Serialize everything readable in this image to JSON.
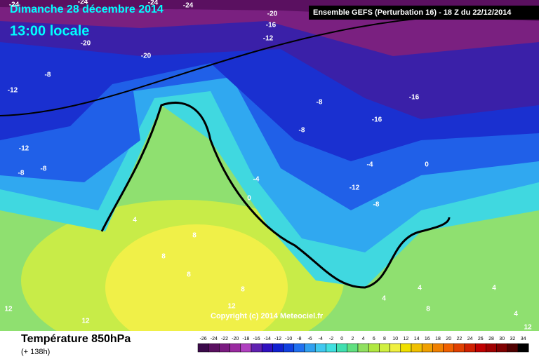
{
  "header": {
    "title": "Dimanche 28 décembre 2014",
    "time": "13:00 locale",
    "model": "Ensemble GEFS  (Perturbation 16)  -  18 Z du 22/12/2014"
  },
  "copyright": "Copyright (c) 2014 Meteociel.fr",
  "footer": {
    "variable": "Température 850hPa",
    "lead": "(+ 138h)"
  },
  "map_labels": [
    -24,
    -24,
    -24,
    -24,
    -20,
    -16,
    -12,
    -20,
    -20,
    -8,
    -12,
    -8,
    -16,
    -16,
    -8,
    -12,
    -8,
    -8,
    -4,
    -4,
    0,
    -12,
    -8,
    0,
    4,
    8,
    8,
    8,
    8,
    12,
    4,
    4,
    4,
    8,
    4,
    12,
    12,
    12
  ],
  "colorbar": {
    "values": [
      -26,
      -24,
      -22,
      -20,
      -18,
      -16,
      -14,
      -12,
      -10,
      -8,
      -6,
      -4,
      -2,
      0,
      2,
      4,
      6,
      8,
      10,
      12,
      14,
      16,
      18,
      20,
      22,
      24,
      26,
      28,
      30,
      32,
      34
    ],
    "colors": [
      "#3b0a4a",
      "#5a1060",
      "#7a1a80",
      "#9a2aa0",
      "#b040c0",
      "#6020b0",
      "#3010c0",
      "#1020d0",
      "#1040e0",
      "#2070f0",
      "#30a0f0",
      "#40c8f0",
      "#40e0e0",
      "#40e0b0",
      "#60e080",
      "#90e060",
      "#b0e840",
      "#d0f040",
      "#f0f040",
      "#f0e000",
      "#f0c000",
      "#f0a000",
      "#f08000",
      "#f06000",
      "#e04000",
      "#d02000",
      "#c00000",
      "#a00000",
      "#800000",
      "#500000",
      "#000000"
    ]
  }
}
